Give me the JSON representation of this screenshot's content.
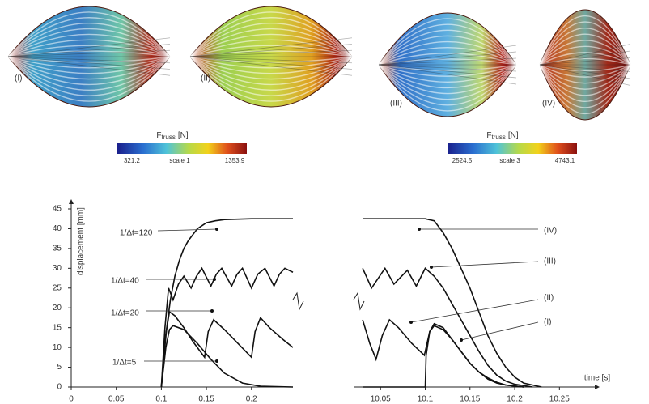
{
  "figures": [
    {
      "label": "(I)"
    },
    {
      "label": "(II)"
    },
    {
      "label": "(III)"
    },
    {
      "label": "(IV)"
    }
  ],
  "colorbars": [
    {
      "symbol": "F",
      "subscript": "truss",
      "unit": "[N]",
      "min": 321.2,
      "scale": "scale 1",
      "max": 1353.9
    },
    {
      "symbol": "F",
      "subscript": "truss",
      "unit": "[N]",
      "min": 2524.5,
      "scale": "scale 3",
      "max": 4743.1
    }
  ],
  "chart_data": [
    {
      "type": "line",
      "ylabel": "displacement [mm]",
      "xlim": [
        0,
        0.246
      ],
      "xticks": [
        0,
        0.05,
        0.1,
        0.15,
        0.2
      ],
      "ylim": [
        0,
        45
      ],
      "yticks": [
        0,
        5,
        10,
        15,
        20,
        25,
        30,
        35,
        40,
        45
      ],
      "series": [
        {
          "name": "1/Δt=120",
          "color": "#111",
          "x": [
            0.1,
            0.103,
            0.106,
            0.11,
            0.115,
            0.12,
            0.125,
            0.13,
            0.14,
            0.15,
            0.16,
            0.17,
            0.2,
            0.246
          ],
          "values": [
            0,
            8,
            15,
            22,
            28,
            32,
            35,
            37,
            40,
            41.5,
            42,
            42.3,
            42.5,
            42.5
          ]
        },
        {
          "name": "1/Δt=40",
          "color": "#111",
          "x": [
            0.1,
            0.104,
            0.108,
            0.113,
            0.119,
            0.125,
            0.133,
            0.139,
            0.145,
            0.155,
            0.161,
            0.167,
            0.178,
            0.184,
            0.19,
            0.2,
            0.207,
            0.215,
            0.225,
            0.231,
            0.237,
            0.246
          ],
          "values": [
            0,
            15,
            25,
            22,
            26,
            28,
            25,
            28,
            30,
            25.5,
            28.5,
            30,
            25.5,
            28.5,
            30,
            25,
            28.5,
            30,
            25.5,
            28.5,
            30,
            29
          ]
        },
        {
          "name": "1/Δt=20",
          "color": "#111",
          "x": [
            0.1,
            0.104,
            0.109,
            0.115,
            0.125,
            0.135,
            0.148,
            0.152,
            0.158,
            0.17,
            0.185,
            0.2,
            0.204,
            0.21,
            0.22,
            0.235,
            0.246
          ],
          "values": [
            0,
            12,
            19,
            18,
            15,
            11.5,
            7.5,
            14,
            17,
            14.5,
            11,
            7.5,
            14,
            17.5,
            15,
            12,
            10
          ]
        },
        {
          "name": "1/Δt=5",
          "color": "#111",
          "x": [
            0.1,
            0.105,
            0.109,
            0.113,
            0.125,
            0.14,
            0.155,
            0.17,
            0.19,
            0.21,
            0.246
          ],
          "values": [
            0,
            10,
            14.5,
            15.5,
            14.5,
            11,
            7,
            3.5,
            1,
            0.2,
            0
          ]
        }
      ]
    },
    {
      "type": "line",
      "xlabel": "time [s]",
      "xlim": [
        10.029,
        10.285
      ],
      "xticks": [
        10.05,
        10.1,
        10.15,
        10.2,
        10.25
      ],
      "ylim": [
        0,
        45
      ],
      "series": [
        {
          "name": "(IV)",
          "color": "#111",
          "x": [
            10.03,
            10.1,
            10.11,
            10.12,
            10.13,
            10.14,
            10.15,
            10.16,
            10.17,
            10.18,
            10.19,
            10.2,
            10.21,
            10.23
          ],
          "values": [
            42.5,
            42.5,
            42,
            39,
            35,
            30,
            25,
            19,
            13,
            8.5,
            5,
            2.5,
            1,
            0
          ]
        },
        {
          "name": "(III)",
          "color": "#111",
          "x": [
            10.03,
            10.04,
            10.055,
            10.065,
            10.08,
            10.09,
            10.1,
            10.11,
            10.12,
            10.13,
            10.14,
            10.15,
            10.16,
            10.17,
            10.18,
            10.19,
            10.2,
            10.22
          ],
          "values": [
            30,
            25,
            30,
            26,
            29.5,
            25.5,
            30,
            28,
            25,
            21,
            17,
            13,
            9,
            5.5,
            3,
            1.5,
            0.7,
            0
          ]
        },
        {
          "name": "(II)",
          "color": "#111",
          "x": [
            10.03,
            10.038,
            10.045,
            10.052,
            10.06,
            10.07,
            10.085,
            10.099,
            10.101,
            10.105,
            10.11,
            10.12,
            10.13,
            10.14,
            10.15,
            10.16,
            10.17,
            10.18,
            10.19,
            10.21
          ],
          "values": [
            17,
            11,
            7,
            13,
            17,
            15,
            11,
            8,
            10,
            14,
            15.5,
            14.5,
            12,
            9,
            6,
            3.8,
            2,
            1,
            0.5,
            0
          ]
        },
        {
          "name": "(I)",
          "color": "#111",
          "x": [
            10.03,
            10.1,
            10.101,
            10.105,
            10.11,
            10.12,
            10.13,
            10.14,
            10.15,
            10.16,
            10.17,
            10.18,
            10.19,
            10.21
          ],
          "values": [
            0,
            0,
            8,
            14,
            16,
            15,
            12,
            9,
            6,
            3.8,
            2.3,
            1.2,
            0.5,
            0
          ]
        }
      ]
    }
  ]
}
